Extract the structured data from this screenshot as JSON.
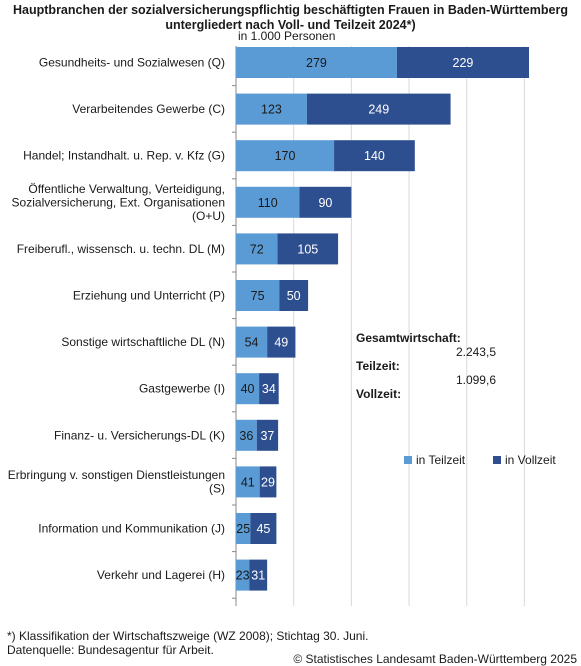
{
  "title": "Hauptbranchen der sozialversicherungspflichtig beschäftigten Frauen in Baden-Württemberg untergliedert nach Voll- und Teilzeit 2024*)",
  "subtitle": "in 1.000 Personen",
  "colors": {
    "teilzeit": "#5b9bd5",
    "vollzeit": "#2e4f8f",
    "grid": "#d9d9d9",
    "axis": "#888888"
  },
  "chart_data": {
    "type": "bar",
    "orientation": "horizontal",
    "stacked": true,
    "categories": [
      "Gesundheits- und Sozialwesen (Q)",
      "Verarbeitendes Gewerbe (C)",
      "Handel; Instandhalt. u. Rep. v. Kfz (G)",
      "Öffentliche Verwaltung, Verteidigung,|Sozialversicherung, Ext. Organisationen|(O+U)",
      "Freiberufl., wissensch. u. techn. DL (M)",
      "Erziehung und Unterricht (P)",
      "Sonstige wirtschaftliche DL (N)",
      "Gastgewerbe (I)",
      "Finanz- u. Versicherungs-DL (K)",
      "Erbringung v. sonstigen Dienstleistungen|(S)",
      "Information und Kommunikation (J)",
      "Verkehr und Lagerei (H)"
    ],
    "series": [
      {
        "name": "in Teilzeit",
        "values": [
          279,
          123,
          170,
          110,
          72,
          75,
          54,
          40,
          36,
          41,
          25,
          23
        ]
      },
      {
        "name": "in Vollzeit",
        "values": [
          229,
          249,
          140,
          90,
          105,
          50,
          49,
          34,
          37,
          29,
          45,
          31
        ]
      }
    ],
    "xlim": [
      0,
      600
    ],
    "grid": true,
    "legend": "bottom-right"
  },
  "summary": {
    "gesamt_label": "Gesamtwirtschaft:",
    "gesamt_value": "2.243,5",
    "teilzeit_label": "Teilzeit:",
    "teilzeit_value": "1.099,6",
    "vollzeit_label": "Vollzeit:",
    "vollzeit_value": ""
  },
  "legend": {
    "teilzeit": "in Teilzeit",
    "vollzeit": "in Vollzeit"
  },
  "footnote_1": "*) Klassifikation der Wirtschaftszweige (WZ 2008); Stichtag 30. Juni.",
  "footnote_2": "Datenquelle: Bundesagentur für Arbeit.",
  "source": "© Statistisches Landesamt Baden-Württemberg 2025"
}
